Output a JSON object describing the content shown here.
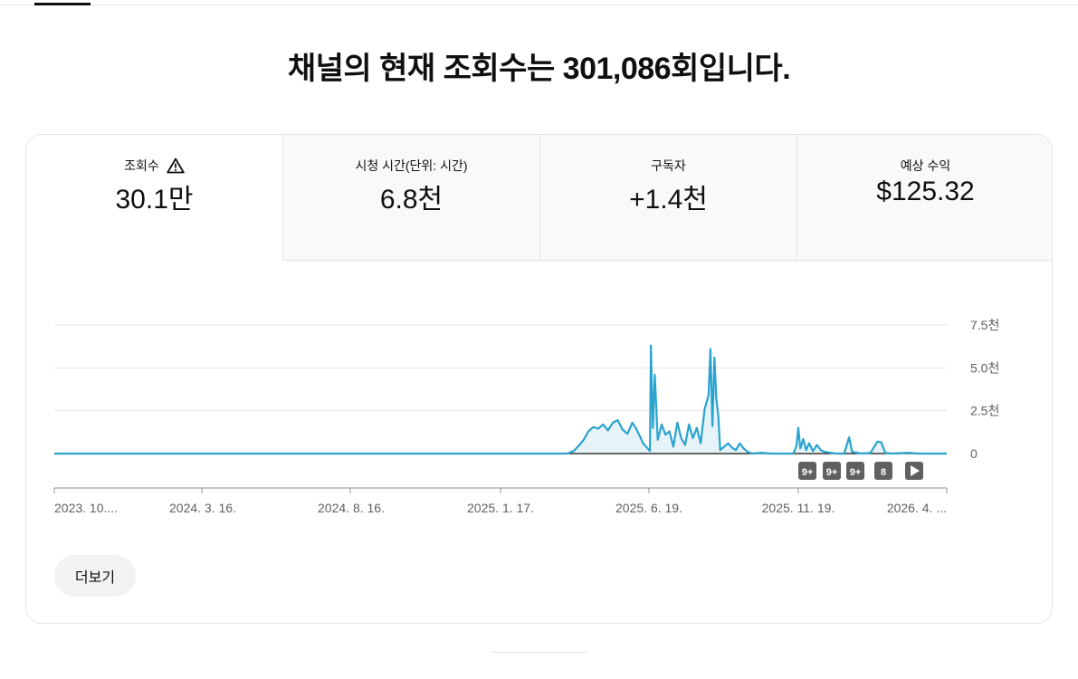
{
  "headline": "채널의 현재 조회수는 301,086회입니다.",
  "metrics": [
    {
      "label": "조회수",
      "value": "30.1만",
      "icon": "warning-icon",
      "active": true
    },
    {
      "label": "시청 시간(단위: 시간)",
      "value": "6.8천"
    },
    {
      "label": "구독자",
      "value": "+1.4천"
    },
    {
      "label": "예상 수익",
      "value": "$125.32"
    }
  ],
  "more_button": "더보기",
  "colors": {
    "line": "#2ba3ce",
    "fill": "#e6f4fa",
    "accent": "#0f0f0f"
  },
  "chart_data": {
    "type": "area",
    "y_ticks": [
      "7.5천",
      "5.0천",
      "2.5천",
      "0"
    ],
    "ylim": [
      0,
      7500
    ],
    "x_ticks": [
      "2023. 10....",
      "2024. 3. 16.",
      "2024. 8. 16.",
      "2025. 1. 17.",
      "2025. 6. 19.",
      "2025. 11. 19.",
      "2026. 4. ..."
    ],
    "x_start": "2023-10-17",
    "x_end": "2026-04-18",
    "markers": [
      "9+",
      "9+",
      "9+",
      "8",
      "play"
    ],
    "series": [
      {
        "values": [
          [
            "2023-10-17",
            0
          ],
          [
            "2025-03-25",
            0
          ],
          [
            "2025-04-01",
            150
          ],
          [
            "2025-04-06",
            450
          ],
          [
            "2025-04-11",
            800
          ],
          [
            "2025-04-16",
            1300
          ],
          [
            "2025-04-21",
            1550
          ],
          [
            "2025-04-26",
            1450
          ],
          [
            "2025-05-01",
            1700
          ],
          [
            "2025-05-06",
            1350
          ],
          [
            "2025-05-11",
            1800
          ],
          [
            "2025-05-16",
            1950
          ],
          [
            "2025-05-21",
            1400
          ],
          [
            "2025-05-26",
            1150
          ],
          [
            "2025-05-31",
            1800
          ],
          [
            "2025-06-03",
            1550
          ],
          [
            "2025-06-07",
            1100
          ],
          [
            "2025-06-11",
            600
          ],
          [
            "2025-06-15",
            350
          ],
          [
            "2025-06-18",
            150
          ],
          [
            "2025-06-19",
            6300
          ],
          [
            "2025-06-21",
            1500
          ],
          [
            "2025-06-23",
            4600
          ],
          [
            "2025-06-26",
            800
          ],
          [
            "2025-06-30",
            1700
          ],
          [
            "2025-07-04",
            1100
          ],
          [
            "2025-07-08",
            1300
          ],
          [
            "2025-07-12",
            400
          ],
          [
            "2025-07-16",
            1800
          ],
          [
            "2025-07-20",
            900
          ],
          [
            "2025-07-24",
            500
          ],
          [
            "2025-07-28",
            1700
          ],
          [
            "2025-08-01",
            900
          ],
          [
            "2025-08-05",
            1500
          ],
          [
            "2025-08-09",
            600
          ],
          [
            "2025-08-13",
            2600
          ],
          [
            "2025-08-17",
            3400
          ],
          [
            "2025-08-19",
            6100
          ],
          [
            "2025-08-21",
            1600
          ],
          [
            "2025-08-23",
            5600
          ],
          [
            "2025-08-25",
            3200
          ],
          [
            "2025-08-27",
            2200
          ],
          [
            "2025-08-29",
            200
          ],
          [
            "2025-09-02",
            400
          ],
          [
            "2025-09-06",
            600
          ],
          [
            "2025-09-10",
            350
          ],
          [
            "2025-09-14",
            200
          ],
          [
            "2025-09-18",
            600
          ],
          [
            "2025-09-22",
            300
          ],
          [
            "2025-09-26",
            100
          ],
          [
            "2025-10-01",
            0
          ],
          [
            "2025-10-10",
            50
          ],
          [
            "2025-10-20",
            0
          ],
          [
            "2025-11-12",
            0
          ],
          [
            "2025-11-15",
            450
          ],
          [
            "2025-11-17",
            1500
          ],
          [
            "2025-11-19",
            300
          ],
          [
            "2025-11-22",
            850
          ],
          [
            "2025-11-25",
            200
          ],
          [
            "2025-11-28",
            600
          ],
          [
            "2025-12-02",
            150
          ],
          [
            "2025-12-06",
            500
          ],
          [
            "2025-12-10",
            200
          ],
          [
            "2025-12-14",
            100
          ],
          [
            "2025-12-20",
            50
          ],
          [
            "2025-12-26",
            0
          ],
          [
            "2026-01-03",
            0
          ],
          [
            "2026-01-08",
            950
          ],
          [
            "2026-01-11",
            100
          ],
          [
            "2026-01-16",
            50
          ],
          [
            "2026-01-22",
            0
          ],
          [
            "2026-01-30",
            50
          ],
          [
            "2026-02-06",
            700
          ],
          [
            "2026-02-10",
            650
          ],
          [
            "2026-02-14",
            50
          ],
          [
            "2026-02-20",
            0
          ],
          [
            "2026-03-10",
            50
          ],
          [
            "2026-03-20",
            0
          ],
          [
            "2026-04-18",
            0
          ]
        ]
      }
    ]
  }
}
